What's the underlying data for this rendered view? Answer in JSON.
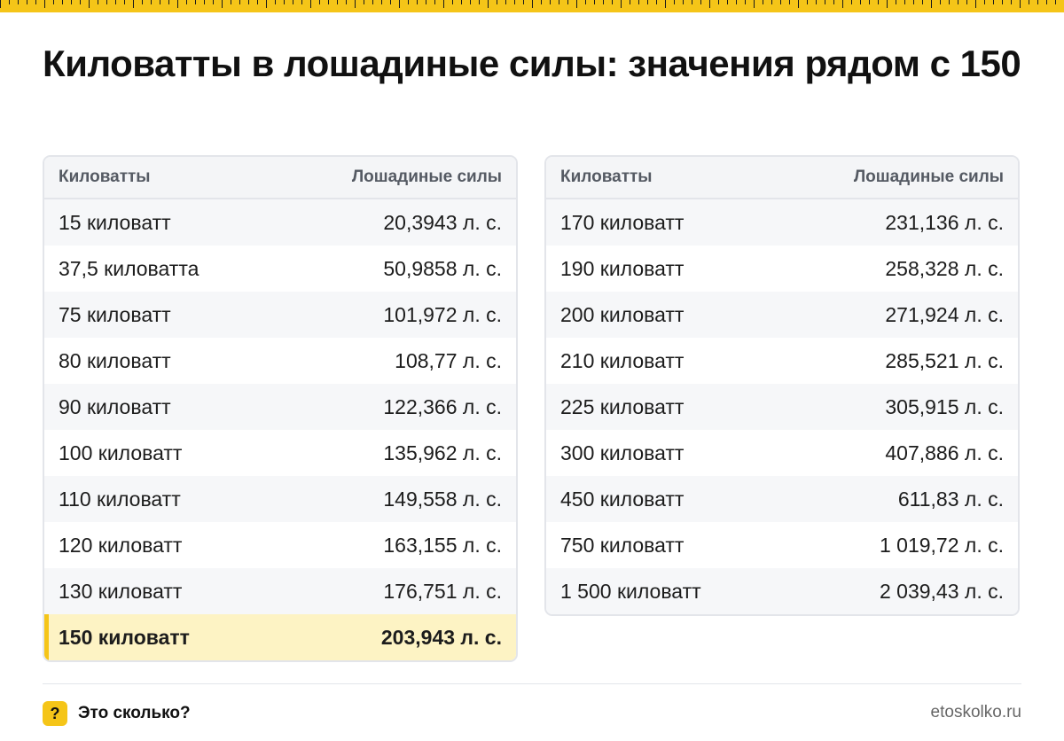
{
  "title": "Киловатты в лошадиные силы: значения рядом с 150",
  "left_table": {
    "header_kw": "Киловатты",
    "header_hp": "Лошадиные силы",
    "rows": [
      {
        "kw": "15 киловатт",
        "hp": "20,3943 л. с."
      },
      {
        "kw": "37,5 киловатта",
        "hp": "50,9858 л. с."
      },
      {
        "kw": "75 киловатт",
        "hp": "101,972 л. с."
      },
      {
        "kw": "80 киловатт",
        "hp": "108,77 л. с."
      },
      {
        "kw": "90 киловатт",
        "hp": "122,366 л. с."
      },
      {
        "kw": "100 киловатт",
        "hp": "135,962 л. с."
      },
      {
        "kw": "110 киловатт",
        "hp": "149,558 л. с."
      },
      {
        "kw": "120 киловатт",
        "hp": "163,155 л. с."
      },
      {
        "kw": "130 киловатт",
        "hp": "176,751 л. с."
      },
      {
        "kw": "150 киловатт",
        "hp": "203,943 л. с."
      }
    ]
  },
  "right_table": {
    "header_kw": "Киловатты",
    "header_hp": "Лошадиные силы",
    "rows": [
      {
        "kw": "170 киловатт",
        "hp": "231,136 л. с."
      },
      {
        "kw": "190 киловатт",
        "hp": "258,328 л. с."
      },
      {
        "kw": "200 киловатт",
        "hp": "271,924 л. с."
      },
      {
        "kw": "210 киловатт",
        "hp": "285,521 л. с."
      },
      {
        "kw": "225 киловатт",
        "hp": "305,915 л. с."
      },
      {
        "kw": "300 киловатт",
        "hp": "407,886 л. с."
      },
      {
        "kw": "450 киловатт",
        "hp": "611,83 л. с."
      },
      {
        "kw": "750 киловатт",
        "hp": "1 019,72 л. с."
      },
      {
        "kw": "1 500 киловатт",
        "hp": "2 039,43 л. с."
      }
    ]
  },
  "footer": {
    "icon_glyph": "?",
    "brand": "Это сколько?",
    "site": "etoskolko.ru"
  },
  "colors": {
    "accent": "#f5c518",
    "highlight_row": "#fdf3c4"
  }
}
